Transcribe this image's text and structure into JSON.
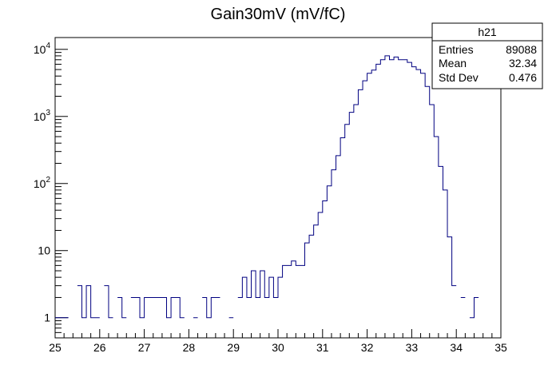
{
  "chart_data": {
    "type": "histogram",
    "title": "Gain30mV (mV/fC)",
    "xlabel": "",
    "ylabel": "",
    "xlim": [
      25,
      35
    ],
    "ylim": [
      0.5,
      15000
    ],
    "yscale": "log",
    "grid": false,
    "line_color": "#000080",
    "bin_width": 0.1,
    "x_ticks": [
      "25",
      "26",
      "27",
      "28",
      "29",
      "30",
      "31",
      "32",
      "33",
      "34",
      "35"
    ],
    "y_ticks": [
      {
        "value": 1,
        "base": "1",
        "exp": ""
      },
      {
        "value": 10,
        "base": "10",
        "exp": ""
      },
      {
        "value": 100,
        "base": "10",
        "exp": "2"
      },
      {
        "value": 1000,
        "base": "10",
        "exp": "3"
      },
      {
        "value": 10000,
        "base": "10",
        "exp": "4"
      }
    ],
    "bins": [
      [
        25.0,
        1
      ],
      [
        25.1,
        1
      ],
      [
        25.2,
        1
      ],
      [
        25.3,
        0
      ],
      [
        25.4,
        0
      ],
      [
        25.5,
        3
      ],
      [
        25.6,
        1
      ],
      [
        25.7,
        3
      ],
      [
        25.8,
        1
      ],
      [
        25.9,
        1
      ],
      [
        26.0,
        0
      ],
      [
        26.1,
        3
      ],
      [
        26.2,
        1
      ],
      [
        26.3,
        0
      ],
      [
        26.4,
        2
      ],
      [
        26.5,
        1
      ],
      [
        26.6,
        0
      ],
      [
        26.7,
        2
      ],
      [
        26.8,
        2
      ],
      [
        26.9,
        1
      ],
      [
        27.0,
        2
      ],
      [
        27.1,
        2
      ],
      [
        27.2,
        2
      ],
      [
        27.3,
        2
      ],
      [
        27.4,
        2
      ],
      [
        27.5,
        1
      ],
      [
        27.6,
        2
      ],
      [
        27.7,
        2
      ],
      [
        27.8,
        1
      ],
      [
        27.9,
        0
      ],
      [
        28.0,
        0
      ],
      [
        28.1,
        1
      ],
      [
        28.2,
        0
      ],
      [
        28.3,
        2
      ],
      [
        28.4,
        1
      ],
      [
        28.5,
        2
      ],
      [
        28.6,
        2
      ],
      [
        28.7,
        0
      ],
      [
        28.8,
        0
      ],
      [
        28.9,
        1
      ],
      [
        29.0,
        0
      ],
      [
        29.1,
        2
      ],
      [
        29.2,
        4
      ],
      [
        29.3,
        2
      ],
      [
        29.4,
        5
      ],
      [
        29.5,
        2
      ],
      [
        29.6,
        5
      ],
      [
        29.7,
        2
      ],
      [
        29.8,
        4
      ],
      [
        29.9,
        2
      ],
      [
        30.0,
        4
      ],
      [
        30.1,
        6
      ],
      [
        30.2,
        6
      ],
      [
        30.3,
        7
      ],
      [
        30.4,
        6
      ],
      [
        30.5,
        6
      ],
      [
        30.6,
        13
      ],
      [
        30.7,
        17
      ],
      [
        30.8,
        24
      ],
      [
        30.9,
        37
      ],
      [
        31.0,
        55
      ],
      [
        31.1,
        92
      ],
      [
        31.2,
        160
      ],
      [
        31.3,
        260
      ],
      [
        31.4,
        480
      ],
      [
        31.5,
        760
      ],
      [
        31.6,
        1150
      ],
      [
        31.7,
        1500
      ],
      [
        31.8,
        2500
      ],
      [
        31.9,
        3400
      ],
      [
        32.0,
        4400
      ],
      [
        32.1,
        4900
      ],
      [
        32.2,
        6000
      ],
      [
        32.3,
        7000
      ],
      [
        32.4,
        8000
      ],
      [
        32.5,
        7000
      ],
      [
        32.6,
        7700
      ],
      [
        32.7,
        7000
      ],
      [
        32.8,
        7000
      ],
      [
        32.9,
        6400
      ],
      [
        33.0,
        5500
      ],
      [
        33.1,
        5000
      ],
      [
        33.2,
        4400
      ],
      [
        33.3,
        2800
      ],
      [
        33.4,
        1500
      ],
      [
        33.5,
        500
      ],
      [
        33.6,
        180
      ],
      [
        33.7,
        80
      ],
      [
        33.8,
        16
      ],
      [
        33.9,
        3
      ],
      [
        34.0,
        0
      ],
      [
        34.1,
        2
      ],
      [
        34.2,
        0
      ],
      [
        34.3,
        1
      ],
      [
        34.4,
        2
      ],
      [
        34.5,
        0
      ],
      [
        34.6,
        0
      ],
      [
        34.7,
        0
      ],
      [
        34.8,
        0
      ],
      [
        34.9,
        0
      ]
    ],
    "stats_box": {
      "name": "h21",
      "rows": [
        {
          "label": "Entries",
          "value": "89088"
        },
        {
          "label": "Mean",
          "value": "32.34"
        },
        {
          "label": "Std Dev",
          "value": "0.476"
        }
      ]
    }
  }
}
